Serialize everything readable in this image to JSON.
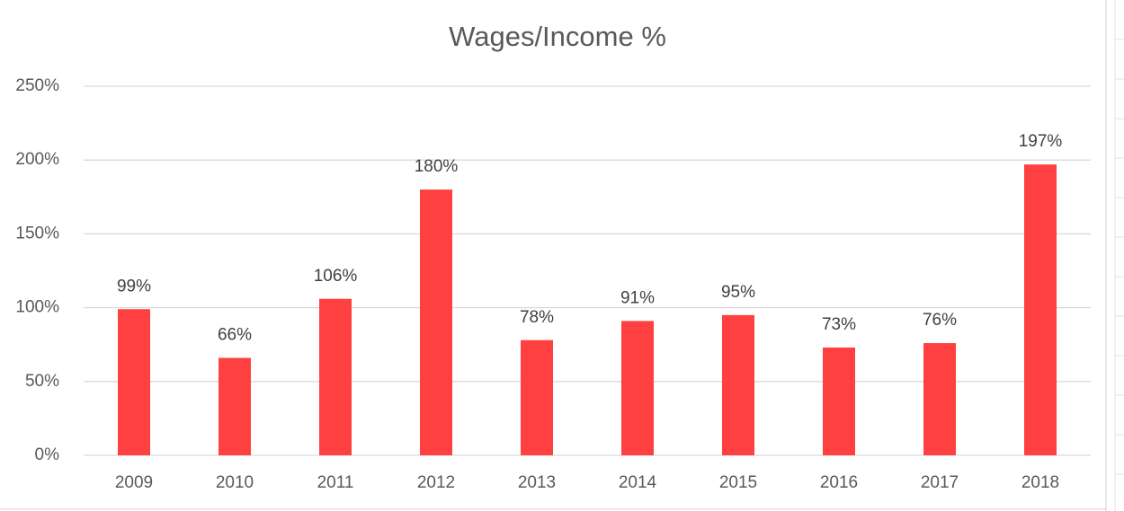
{
  "chart_data": {
    "type": "bar",
    "title": "Wages/Income %",
    "categories": [
      "2009",
      "2010",
      "2011",
      "2012",
      "2013",
      "2014",
      "2015",
      "2016",
      "2017",
      "2018"
    ],
    "values": [
      99,
      66,
      106,
      180,
      78,
      91,
      95,
      73,
      76,
      197
    ],
    "value_labels": [
      "99%",
      "66%",
      "106%",
      "180%",
      "78%",
      "91%",
      "95%",
      "73%",
      "76%",
      "197%"
    ],
    "color": "#ff4040",
    "ylim": [
      0,
      250
    ],
    "yticks": [
      {
        "value": 0,
        "label": "0%"
      },
      {
        "value": 50,
        "label": "50%"
      },
      {
        "value": 100,
        "label": "100%"
      },
      {
        "value": 150,
        "label": "150%"
      },
      {
        "value": 200,
        "label": "200%"
      },
      {
        "value": 250,
        "label": "250%"
      }
    ],
    "grid": true
  }
}
